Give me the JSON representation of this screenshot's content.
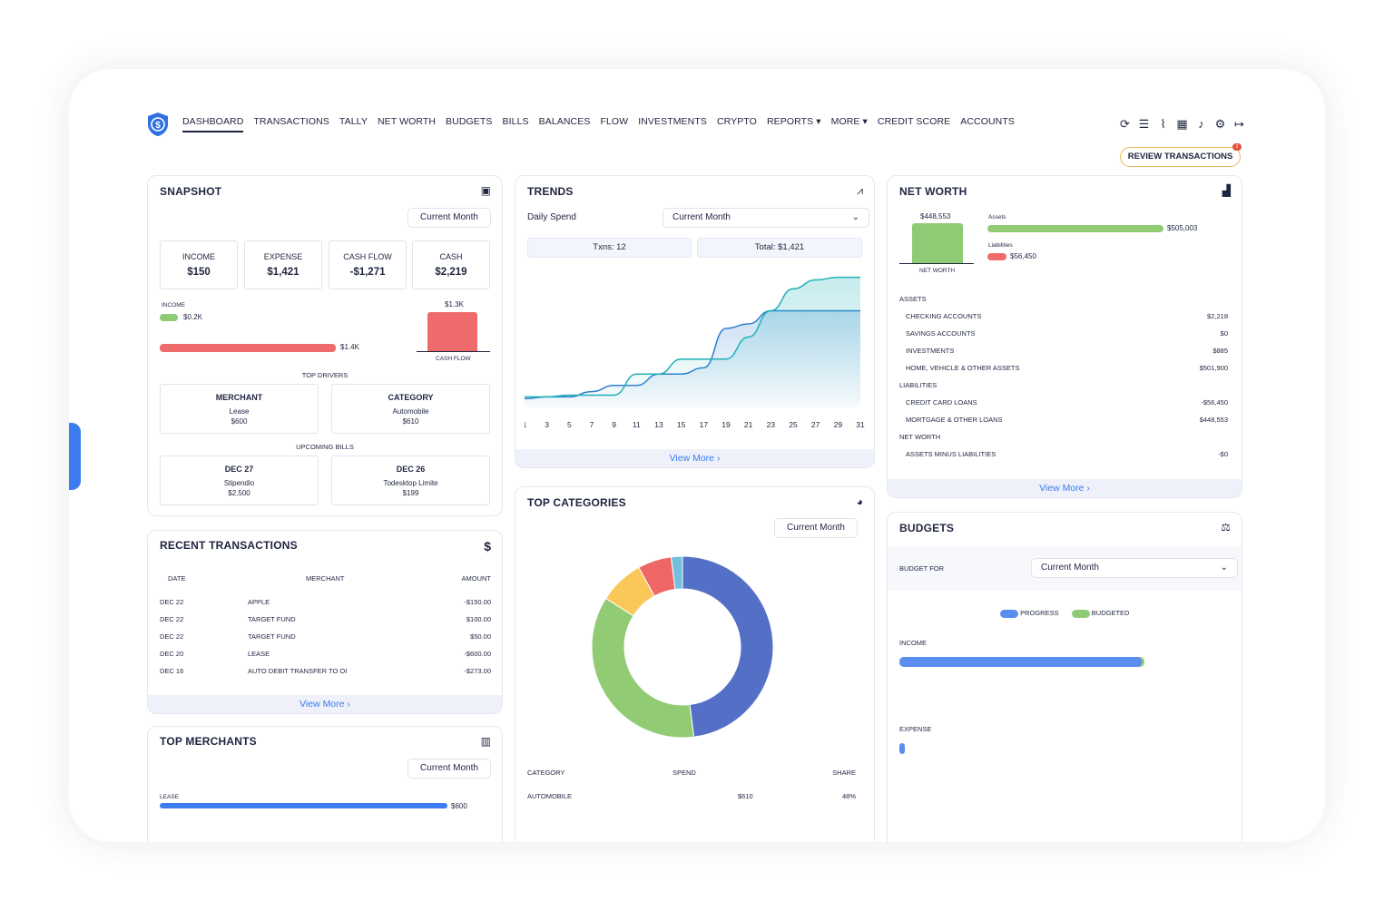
{
  "nav": {
    "items": [
      "DASHBOARD",
      "TRANSACTIONS",
      "TALLY",
      "NET WORTH",
      "BUDGETS",
      "BILLS",
      "BALANCES",
      "FLOW",
      "INVESTMENTS",
      "CRYPTO",
      "REPORTS ▾",
      "MORE ▾",
      "CREDIT SCORE",
      "ACCOUNTS"
    ],
    "active": "DASHBOARD",
    "icons": [
      "refresh-icon",
      "list-icon",
      "attachment-icon",
      "calendar-icon",
      "bell-icon",
      "gear-icon",
      "logout-icon"
    ],
    "review_label": "REVIEW TRANSACTIONS",
    "review_badge": "2"
  },
  "snapshot": {
    "title": "SNAPSHOT",
    "period": "Current Month",
    "stats": [
      {
        "label": "INCOME",
        "value": "$150"
      },
      {
        "label": "EXPENSE",
        "value": "$1,421"
      },
      {
        "label": "CASH FLOW",
        "value": "-$1,271"
      },
      {
        "label": "CASH",
        "value": "$2,219"
      }
    ],
    "income_label": "INCOME",
    "income_value": "$0.2K",
    "expense_value": "$1.4K",
    "cashflow_value": "$1.3K",
    "cashflow_label": "CASH FLOW",
    "top_drivers_label": "TOP DRIVERS",
    "drivers": [
      {
        "head": "MERCHANT",
        "name": "Lease",
        "amount": "$600"
      },
      {
        "head": "CATEGORY",
        "name": "Automobile",
        "amount": "$610"
      }
    ],
    "upcoming_label": "UPCOMING BILLS",
    "bills": [
      {
        "date": "DEC 27",
        "name": "Stipendio",
        "amount": "$2,500"
      },
      {
        "date": "DEC 26",
        "name": "Todesktop Limite",
        "amount": "$199"
      }
    ]
  },
  "recent": {
    "title": "RECENT TRANSACTIONS",
    "headers": [
      "DATE",
      "MERCHANT",
      "AMOUNT"
    ],
    "rows": [
      {
        "date": "DEC 22",
        "merchant": "APPLE",
        "amount": "-$150.00"
      },
      {
        "date": "DEC 22",
        "merchant": "TARGET FUND",
        "amount": "$100.00"
      },
      {
        "date": "DEC 22",
        "merchant": "TARGET FUND",
        "amount": "$50.00"
      },
      {
        "date": "DEC 20",
        "merchant": "LEASE",
        "amount": "-$600.00"
      },
      {
        "date": "DEC 16",
        "merchant": "AUTO DEBIT TRANSFER TO OI",
        "amount": "-$273.00"
      }
    ],
    "view_more": "View More ›"
  },
  "merchants": {
    "title": "TOP MERCHANTS",
    "period": "Current Month",
    "first_label": "LEASE",
    "first_value": "$600"
  },
  "trends": {
    "title": "TRENDS",
    "metric": "Daily Spend",
    "period": "Current Month",
    "txns": "Txns: 12",
    "total": "Total: $1,421",
    "view_more": "View More ›"
  },
  "chart_data": {
    "type": "line",
    "x": [
      1,
      3,
      5,
      7,
      9,
      11,
      13,
      15,
      17,
      19,
      21,
      23,
      25,
      27,
      29,
      31
    ],
    "series": [
      {
        "values": [
          10,
          12,
          12,
          18,
          25,
          25,
          38,
          38,
          45,
          90,
          95,
          110,
          110,
          110,
          110,
          110
        ]
      },
      {
        "values": [
          12,
          12,
          14,
          14,
          14,
          38,
          38,
          55,
          55,
          55,
          80,
          110,
          135,
          145,
          148,
          148
        ]
      }
    ],
    "ylim": [
      0,
      160
    ],
    "grid": false
  },
  "categories": {
    "title": "TOP CATEGORIES",
    "period": "Current Month",
    "headers": [
      "CATEGORY",
      "SPEND",
      "SHARE"
    ],
    "first_row": {
      "category": "AUTOMOBILE",
      "spend": "$610",
      "share": "48%"
    },
    "donut": [
      {
        "share": 48,
        "color": "#5470c6"
      },
      {
        "share": 36,
        "color": "#91cc75"
      },
      {
        "share": 8,
        "color": "#fac858"
      },
      {
        "share": 6,
        "color": "#ee6666"
      },
      {
        "share": 2,
        "color": "#73c0de"
      }
    ]
  },
  "networth": {
    "title": "NET WORTH",
    "bar_value": "$448,553",
    "bar_label": "NET WORTH",
    "assets_label": "Assets",
    "assets_value": "$505,003",
    "liabilities_label": "Liabilities",
    "liabilities_value": "$56,450",
    "assets_ratio": 1.0,
    "liabilities_ratio": 0.11,
    "sections": [
      {
        "head": "ASSETS",
        "rows": [
          {
            "name": "CHECKING ACCOUNTS",
            "value": "$2,218"
          },
          {
            "name": "SAVINGS ACCOUNTS",
            "value": "$0"
          },
          {
            "name": "INVESTMENTS",
            "value": "$885"
          },
          {
            "name": "HOME, VEHICLE & OTHER ASSETS",
            "value": "$501,900"
          }
        ]
      },
      {
        "head": "LIABILITIES",
        "rows": [
          {
            "name": "CREDIT CARD LOANS",
            "value": "-$56,450"
          },
          {
            "name": "MORTGAGE & OTHER LOANS",
            "value": "$448,553"
          }
        ]
      },
      {
        "head": "NET WORTH",
        "rows": [
          {
            "name": "ASSETS MINUS LIABILITIES",
            "value": "-$0"
          }
        ]
      }
    ],
    "view_more": "View More ›"
  },
  "budgets": {
    "title": "BUDGETS",
    "for_label": "BUDGET FOR",
    "period": "Current Month",
    "legend": [
      "PROGRESS",
      "BUDGETED"
    ],
    "income_label": "INCOME",
    "expense_label": "EXPENSE",
    "income_progress": 0.99,
    "expense_progress": 0.02
  },
  "colors": {
    "accent": "#3c7bf0",
    "green": "#8fcb75",
    "red": "#ef6b6b",
    "teal": "#1fb1b8",
    "blue_line": "#2f7fd0"
  }
}
